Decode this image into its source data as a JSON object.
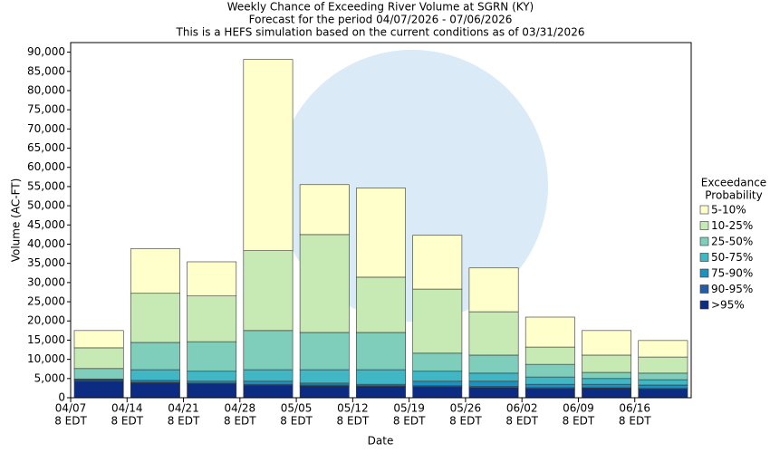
{
  "chart_data": {
    "type": "stacked_bar",
    "title": "Weekly Chance of Exceeding River Volume at SGRN (KY)",
    "subtitles": [
      "Forecast for the period 04/07/2026 - 07/06/2026",
      "This is a HEFS simulation based on the current conditions as of 03/31/2026"
    ],
    "x_label": "Date",
    "y_label": "Volume (AC-FT)",
    "legend_title": [
      "Exceedance",
      "Probability"
    ],
    "legend_position": "right",
    "categories": [
      [
        "04/07",
        "8 EDT"
      ],
      [
        "04/14",
        "8 EDT"
      ],
      [
        "04/21",
        "8 EDT"
      ],
      [
        "04/28",
        "8 EDT"
      ],
      [
        "05/05",
        "8 EDT"
      ],
      [
        "05/12",
        "8 EDT"
      ],
      [
        "05/19",
        "8 EDT"
      ],
      [
        "05/26",
        "8 EDT"
      ],
      [
        "06/02",
        "8 EDT"
      ],
      [
        "06/09",
        "8 EDT"
      ],
      [
        "06/16",
        "8 EDT"
      ]
    ],
    "series": [
      {
        "name": ">95%",
        "color": "#0c2c84",
        "values": [
          4200,
          3800,
          3600,
          3200,
          3000,
          2900,
          2800,
          2600,
          2300,
          2400,
          2200
        ]
      },
      {
        "name": "90-95%",
        "color": "#225ea8",
        "values": [
          300,
          200,
          200,
          300,
          300,
          200,
          300,
          300,
          300,
          200,
          200
        ]
      },
      {
        "name": "75-90%",
        "color": "#1d91c0",
        "values": [
          200,
          500,
          500,
          800,
          500,
          400,
          1200,
          1400,
          900,
          900,
          900
        ]
      },
      {
        "name": "50-75%",
        "color": "#41b6c4",
        "values": [
          200,
          2800,
          2600,
          3000,
          3500,
          3800,
          2600,
          2100,
          1900,
          1500,
          1400
        ]
      },
      {
        "name": "25-50%",
        "color": "#7fcdbb",
        "values": [
          2700,
          7100,
          7700,
          10200,
          9700,
          9700,
          4700,
          4700,
          3300,
          1600,
          1700
        ]
      },
      {
        "name": "10-25%",
        "color": "#c7e9b4",
        "values": [
          5400,
          12800,
          11900,
          20800,
          25500,
          14400,
          16700,
          11300,
          4500,
          4500,
          4200
        ]
      },
      {
        "name": "5-10%",
        "color": "#ffffcc",
        "values": [
          4500,
          11600,
          8900,
          49800,
          13000,
          23200,
          14000,
          11400,
          7800,
          6400,
          4300
        ]
      }
    ],
    "ylim": [
      0,
      92500
    ],
    "yticks": [
      0,
      {
        "value": 5000,
        "label": "5,000"
      },
      {
        "value": 10000,
        "label": "10,000"
      },
      {
        "value": 15000,
        "label": "15,000"
      },
      {
        "value": 20000,
        "label": "20,000"
      },
      {
        "value": 25000,
        "label": "25,000"
      },
      {
        "value": 30000,
        "label": "30,000"
      },
      {
        "value": 35000,
        "label": "35,000"
      },
      {
        "value": 40000,
        "label": "40,000"
      },
      {
        "value": 45000,
        "label": "45,000"
      },
      {
        "value": 50000,
        "label": "50,000"
      },
      {
        "value": 55000,
        "label": "55,000"
      },
      {
        "value": 60000,
        "label": "60,000"
      },
      {
        "value": 65000,
        "label": "65,000"
      },
      {
        "value": 70000,
        "label": "70,000"
      },
      {
        "value": 75000,
        "label": "75,000"
      },
      {
        "value": 80000,
        "label": "80,000"
      },
      {
        "value": 85000,
        "label": "85,000"
      },
      {
        "value": 90000,
        "label": "90,000"
      }
    ],
    "grid": false
  }
}
